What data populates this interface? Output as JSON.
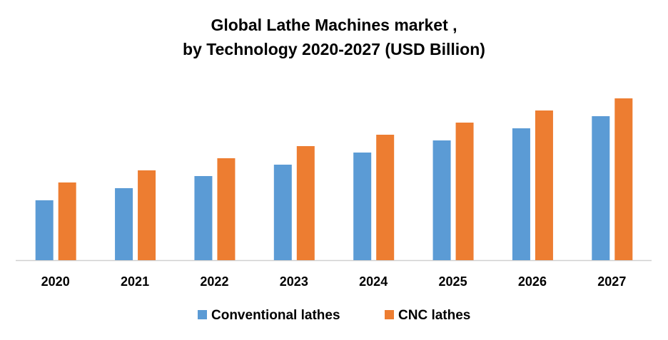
{
  "chart_data": {
    "type": "bar",
    "title_line1": "Global Lathe Machines market ,",
    "title_line2": "by Technology 2020-2027 (USD Billion)",
    "categories": [
      "2020",
      "2021",
      "2022",
      "2023",
      "2024",
      "2025",
      "2026",
      "2027"
    ],
    "series": [
      {
        "name": "Conventional lathes",
        "color": "#5B9BD5",
        "values": [
          84,
          101,
          118,
          134,
          151,
          168,
          185,
          202
        ]
      },
      {
        "name": "CNC lathes",
        "color": "#ED7D31",
        "values": [
          109,
          126,
          143,
          160,
          176,
          193,
          210,
          227
        ]
      }
    ],
    "value_note": "relative units (no y-axis shown)",
    "ylim": [
      0,
      250
    ],
    "grid": false,
    "legend": "bottom"
  }
}
